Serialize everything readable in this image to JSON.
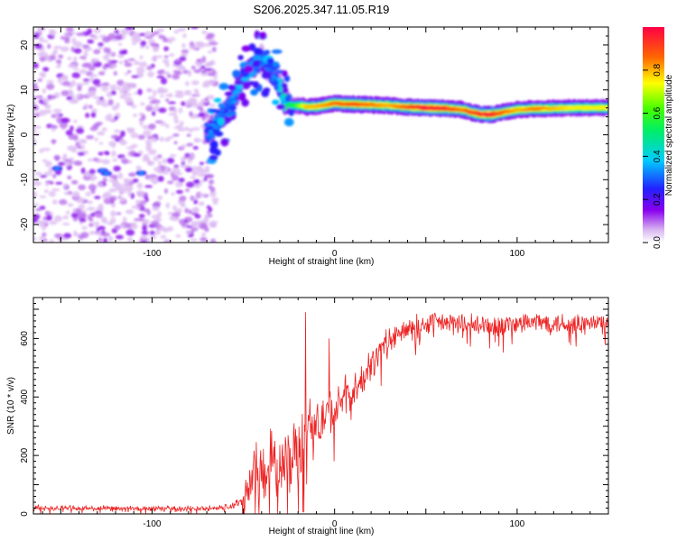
{
  "title": "S206.2025.347.11.05.R19",
  "chart_data": [
    {
      "type": "heatmap",
      "title": "S206.2025.347.11.05.R19",
      "xlabel": "Height of straight line (km)",
      "ylabel": "Frequency (Hz)",
      "xlim": [
        -165,
        150
      ],
      "ylim": [
        -24,
        24
      ],
      "xticks": [
        -100,
        0,
        100
      ],
      "xtick_labels": [
        "-100",
        "0",
        "100"
      ],
      "yticks": [
        -20,
        -10,
        0,
        10,
        20
      ],
      "ytick_labels": [
        "-20",
        "-10",
        "0",
        "10",
        "20"
      ],
      "colorbar": {
        "label": "Normalized spectral amplitude",
        "range": [
          0,
          1
        ],
        "ticks": [
          0.0,
          0.2,
          0.4,
          0.6,
          0.8
        ],
        "tick_labels": [
          "0.0",
          "0.2",
          "0.4",
          "0.6",
          "0.8"
        ],
        "colormap": "rainbow (white-violet-blue-cyan-green-yellow-red)"
      },
      "noise_region": {
        "x_range": [
          -165,
          -65
        ],
        "freq_range": [
          -24,
          24
        ],
        "amplitude": 0.05
      },
      "signal_ridge": {
        "x": [
          -70,
          -67,
          -60,
          -55,
          -50,
          -45,
          -40,
          -35,
          -30,
          -27,
          -22,
          -18,
          -15,
          -10,
          0,
          10,
          20,
          30,
          40,
          50,
          60,
          70,
          75,
          80,
          85,
          90,
          95,
          100,
          110,
          120,
          130,
          140,
          150
        ],
        "freq": [
          0.5,
          1.0,
          5,
          8,
          13,
          15,
          17,
          14,
          11,
          7,
          6.5,
          6.5,
          6.2,
          6.3,
          7,
          6.8,
          6.7,
          6.5,
          6.2,
          6.0,
          5.9,
          5.6,
          5.0,
          4.6,
          4.5,
          4.8,
          5.2,
          5.6,
          5.8,
          5.9,
          6.0,
          6.0,
          6.0
        ],
        "amplitude": [
          0.3,
          0.35,
          0.3,
          0.35,
          0.4,
          0.35,
          0.35,
          0.3,
          0.4,
          0.5,
          0.55,
          0.7,
          0.8,
          0.8,
          0.85,
          0.9,
          0.85,
          0.8,
          0.9,
          1.0,
          0.95,
          0.85,
          0.9,
          0.95,
          1.0,
          0.9,
          0.85,
          0.8,
          0.85,
          0.8,
          0.75,
          0.75,
          0.75
        ]
      }
    },
    {
      "type": "line",
      "xlabel": "Height of straight line (km)",
      "ylabel": "SNR (10 * v/v)",
      "xlim": [
        -165,
        150
      ],
      "ylim": [
        0,
        740
      ],
      "xticks": [
        -100,
        0,
        100
      ],
      "xtick_labels": [
        "-100",
        "0",
        "100"
      ],
      "yticks": [
        0,
        200,
        400,
        600
      ],
      "ytick_labels": [
        "0",
        "200",
        "400",
        "600"
      ],
      "color": "#ee2222",
      "series": [
        {
          "name": "SNR",
          "x": [
            -165,
            -150,
            -130,
            -110,
            -90,
            -70,
            -60,
            -55,
            -50,
            -48,
            -45,
            -40,
            -35,
            -30,
            -25,
            -20,
            -17,
            -15,
            -10,
            -5,
            0,
            5,
            10,
            15,
            20,
            25,
            30,
            35,
            40,
            50,
            60,
            70,
            80,
            90,
            100,
            110,
            120,
            130,
            140,
            150
          ],
          "y": [
            20,
            20,
            18,
            18,
            18,
            18,
            22,
            30,
            45,
            80,
            130,
            160,
            170,
            150,
            190,
            230,
            260,
            290,
            300,
            340,
            350,
            390,
            410,
            450,
            510,
            560,
            590,
            610,
            630,
            650,
            655,
            645,
            640,
            645,
            650,
            655,
            655,
            650,
            650,
            655
          ],
          "noise_amplitude": [
            10,
            10,
            10,
            10,
            10,
            10,
            12,
            15,
            25,
            70,
            100,
            120,
            120,
            110,
            120,
            120,
            120,
            110,
            100,
            90,
            80,
            80,
            70,
            60,
            60,
            50,
            50,
            45,
            45,
            40,
            40,
            40,
            40,
            40,
            40,
            40,
            40,
            40,
            40,
            40
          ]
        }
      ],
      "spikes": [
        {
          "x": -16,
          "y": 690
        },
        {
          "x": -3,
          "y": 600
        }
      ]
    }
  ]
}
